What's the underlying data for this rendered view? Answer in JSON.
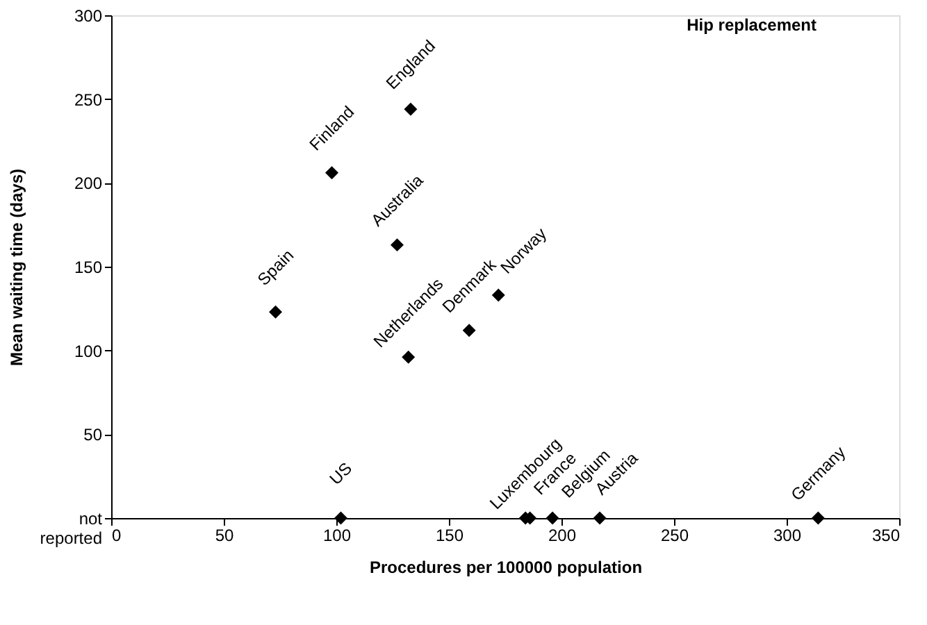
{
  "chart_data": {
    "type": "scatter",
    "title": "Hip replacement",
    "xlabel": "Procedures per 100000 population",
    "ylabel": "Mean waiting time (days)",
    "x": [
      73,
      98,
      133,
      127,
      132,
      159,
      172,
      102,
      184,
      186,
      196,
      217,
      314
    ],
    "series": [
      {
        "color": "#000000",
        "values": [
          123,
          206,
          244,
          163,
          96,
          112,
          133,
          0,
          0,
          0,
          0,
          0,
          0
        ]
      }
    ],
    "annotations": [
      {
        "text": "Spain",
        "x": 73,
        "y": 123
      },
      {
        "text": "Finland",
        "x": 98,
        "y": 206
      },
      {
        "text": "England",
        "x": 133,
        "y": 244
      },
      {
        "text": "Australia",
        "x": 127,
        "y": 163
      },
      {
        "text": "Netherlands",
        "x": 132,
        "y": 96
      },
      {
        "text": "Denmark",
        "x": 159,
        "y": 112
      },
      {
        "text": "Norway",
        "x": 172,
        "y": 133
      },
      {
        "text": "US",
        "x": 102,
        "y": 0
      },
      {
        "text": "Luxembourg",
        "x": 184,
        "y": 0
      },
      {
        "text": "France",
        "x": 186,
        "y": 0
      },
      {
        "text": "Belgium",
        "x": 196,
        "y": 0
      },
      {
        "text": "Austria",
        "x": 217,
        "y": 0
      },
      {
        "text": "Germany",
        "x": 314,
        "y": 0
      }
    ],
    "xlim": [
      0,
      350
    ],
    "xticks": [
      0,
      50,
      100,
      150,
      200,
      250,
      300,
      350
    ],
    "ylim": [
      0,
      300
    ],
    "yticks": [
      {
        "value": 0,
        "label": "not reported"
      },
      50,
      100,
      150,
      200,
      250,
      300
    ],
    "marker": "diamond",
    "grid": false
  }
}
